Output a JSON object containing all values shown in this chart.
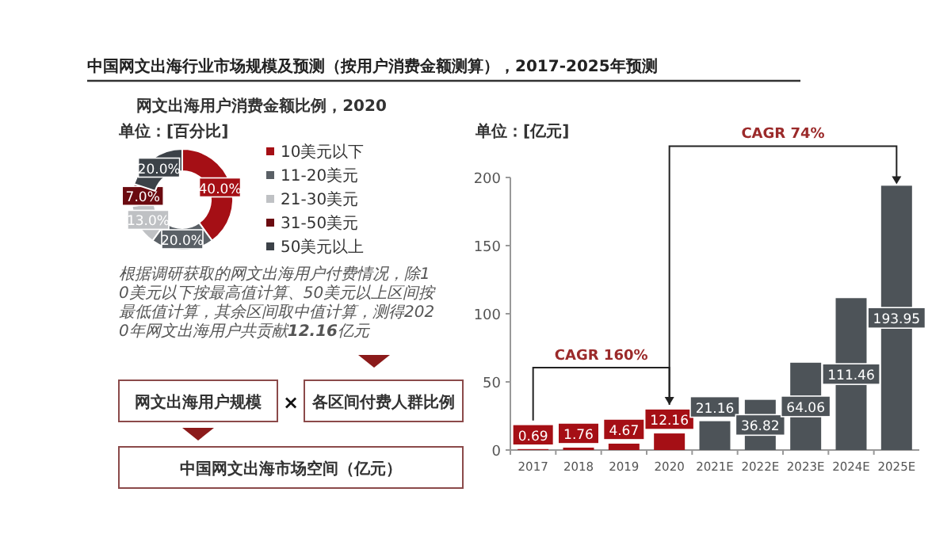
{
  "chart_data": [
    {
      "type": "donut",
      "title": "网文出海用户消费金额比例，2020",
      "subtitle": "单位：[百分比]",
      "categories": [
        "10美元以下",
        "11-20美元",
        "21-30美元",
        "31-50美元",
        "50美元以上"
      ],
      "values": [
        40,
        20,
        13,
        7,
        20
      ],
      "colors": [
        "#a50f15",
        "#5a6066",
        "#bfc1c4",
        "#6b0b10",
        "#3c4248"
      ],
      "value_labels": [
        "40.0%",
        "20.0%",
        "13.0%",
        "7.0%",
        "20.0%"
      ],
      "legend": "right",
      "annotations": [
        "根据调研获取的网文出海用户付费情况，除10美元以下按最高值计算、50美元以上区间按最低值计算，其余区间取中值计算，测得2020年网文出海用户共贡献**12.16**亿元",
        "网文出海用户规模",
        "×",
        "各区间付费人群比例",
        "中国网文出海市场空间（亿元）"
      ]
    },
    {
      "type": "bar",
      "title": "中国网文出海行业市场规模及预测（按用户消费金额测算），2017-2025年预测",
      "subtitle": "单位：[亿元]",
      "categories": [
        "2017",
        "2018",
        "2019",
        "2020",
        "2021E",
        "2022E",
        "2023E",
        "2024E",
        "2025E"
      ],
      "values": [
        0.69,
        1.76,
        4.67,
        12.16,
        21.16,
        36.82,
        64.06,
        111.46,
        193.95
      ],
      "colors": [
        "#a50f15",
        "#a50f15",
        "#a50f15",
        "#a50f15",
        "#4d5358",
        "#4d5358",
        "#4d5358",
        "#4d5358",
        "#4d5358"
      ],
      "ylim": [
        0,
        200
      ],
      "yticks": [
        0,
        50,
        100,
        150,
        200
      ],
      "data_labels": true,
      "grid": false,
      "annotations": [
        "CAGR 160%",
        "CAGR 74%"
      ]
    }
  ]
}
